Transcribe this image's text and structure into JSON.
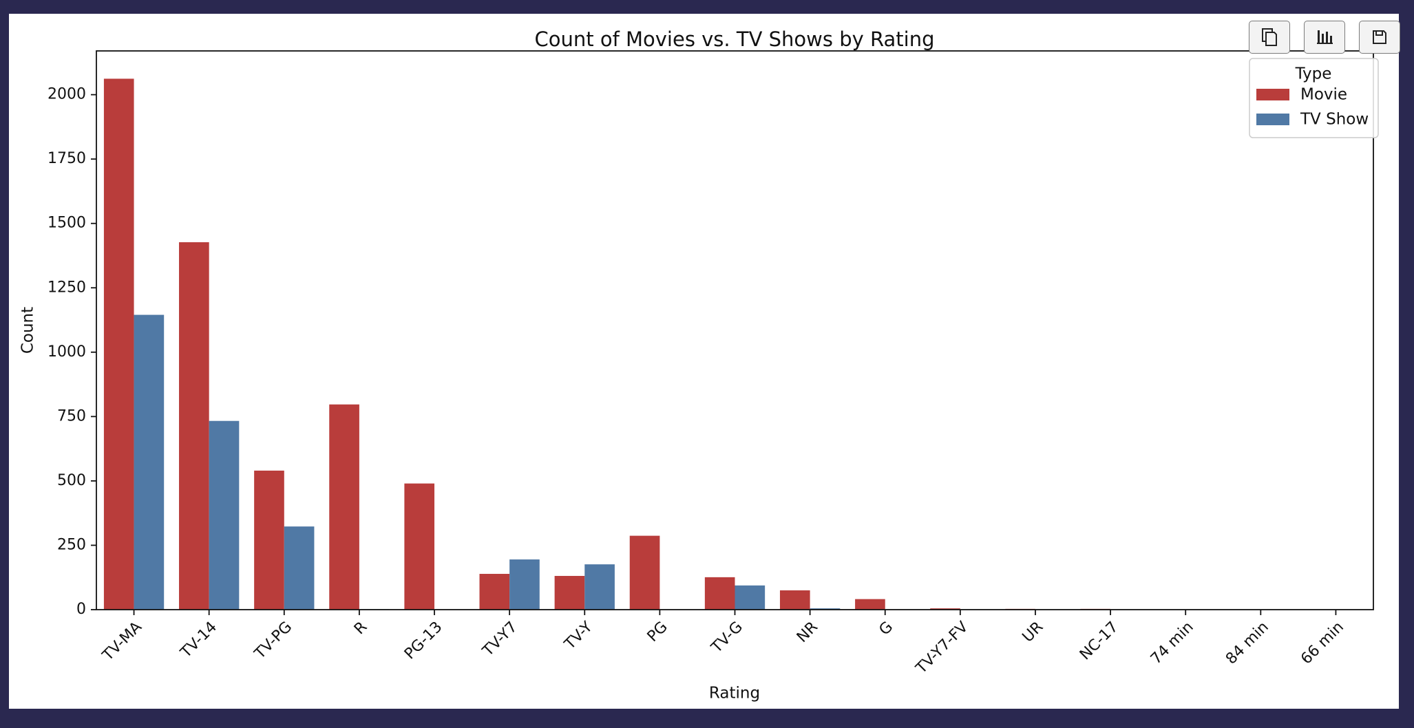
{
  "toolbar": {
    "buttons": [
      {
        "name": "copy-button",
        "icon": "copy-icon"
      },
      {
        "name": "chart-button",
        "icon": "bar-chart-icon"
      },
      {
        "name": "save-button",
        "icon": "floppy-disk-icon"
      }
    ]
  },
  "colors": {
    "movie": "#b93d3b",
    "tv_show": "#5079a5",
    "background": "#2a2850"
  },
  "chart_data": {
    "type": "bar",
    "title": "Count of Movies vs. TV Shows by Rating",
    "xlabel": "Rating",
    "ylabel": "Count",
    "ylim": [
      0,
      2170
    ],
    "yticks": [
      0,
      250,
      500,
      750,
      1000,
      1250,
      1500,
      1750,
      2000
    ],
    "categories": [
      "TV-MA",
      "TV-14",
      "TV-PG",
      "R",
      "PG-13",
      "TV-Y7",
      "TV-Y",
      "PG",
      "TV-G",
      "NR",
      "G",
      "TV-Y7-FV",
      "UR",
      "NC-17",
      "74 min",
      "84 min",
      "66 min"
    ],
    "series": [
      {
        "name": "Movie",
        "color": "#b93d3b",
        "values": [
          2062,
          1427,
          540,
          797,
          490,
          139,
          131,
          287,
          126,
          75,
          41,
          5,
          3,
          3,
          1,
          1,
          1
        ]
      },
      {
        "name": "TV Show",
        "color": "#5079a5",
        "values": [
          1145,
          733,
          323,
          2,
          1,
          195,
          176,
          0,
          94,
          5,
          0,
          1,
          0,
          0,
          0,
          0,
          0
        ]
      }
    ],
    "legend": {
      "title": "Type",
      "position": "top-right"
    },
    "grid": false
  }
}
